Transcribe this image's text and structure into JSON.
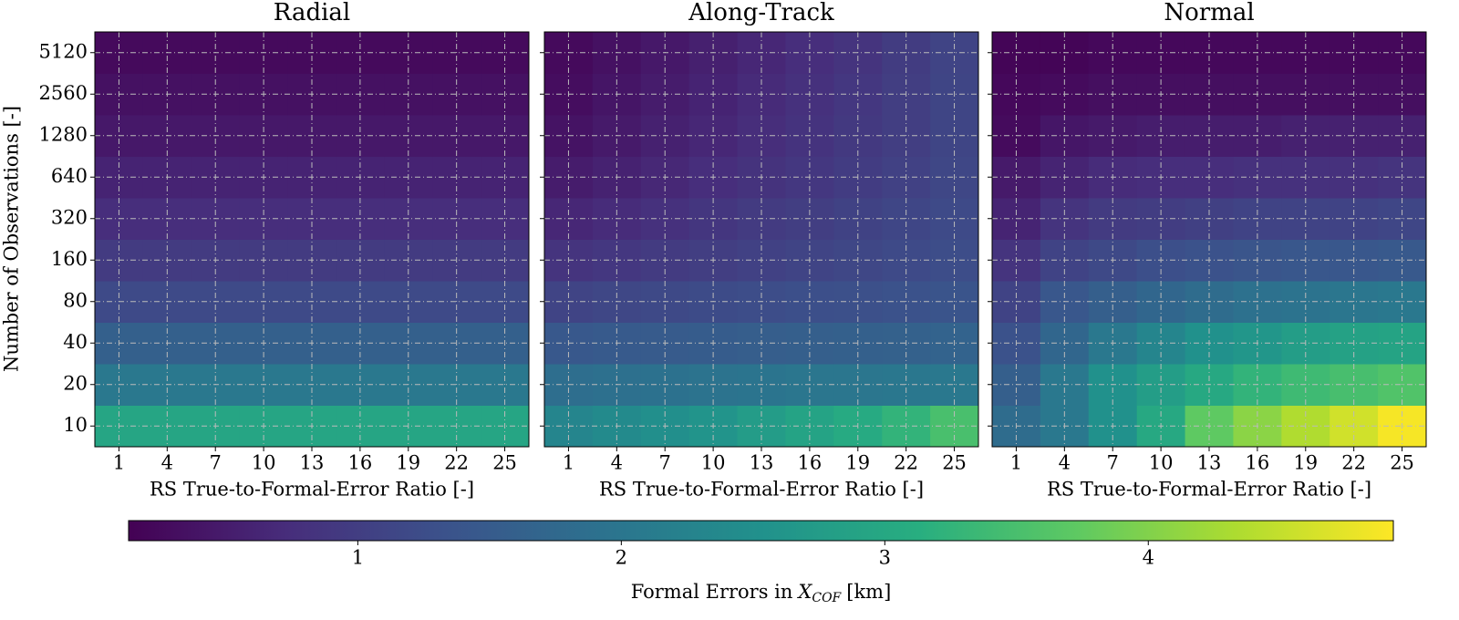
{
  "chart_data": {
    "type": "heatmap",
    "panels": [
      {
        "title": "Radial",
        "values": [
          [
            2.95,
            2.95,
            2.95,
            2.95,
            2.95,
            2.95,
            2.95,
            2.95,
            2.95
          ],
          [
            2.05,
            2.05,
            2.05,
            2.05,
            2.05,
            2.05,
            2.05,
            2.05,
            2.05
          ],
          [
            1.6,
            1.6,
            1.6,
            1.6,
            1.6,
            1.6,
            1.6,
            1.6,
            1.6
          ],
          [
            1.2,
            1.2,
            1.2,
            1.2,
            1.2,
            1.2,
            1.2,
            1.2,
            1.2
          ],
          [
            0.95,
            0.95,
            0.95,
            0.95,
            0.95,
            0.95,
            0.95,
            0.95,
            0.95
          ],
          [
            0.75,
            0.75,
            0.75,
            0.75,
            0.75,
            0.75,
            0.75,
            0.75,
            0.75
          ],
          [
            0.6,
            0.6,
            0.6,
            0.6,
            0.6,
            0.6,
            0.6,
            0.6,
            0.6
          ],
          [
            0.45,
            0.45,
            0.45,
            0.45,
            0.45,
            0.45,
            0.45,
            0.45,
            0.45
          ],
          [
            0.35,
            0.35,
            0.35,
            0.35,
            0.35,
            0.35,
            0.35,
            0.35,
            0.35
          ],
          [
            0.25,
            0.25,
            0.25,
            0.25,
            0.25,
            0.25,
            0.25,
            0.25,
            0.25
          ]
        ]
      },
      {
        "title": "Along-Track",
        "values": [
          [
            2.29,
            2.4,
            2.5,
            2.6,
            2.75,
            2.9,
            3.05,
            3.25,
            3.5
          ],
          [
            1.85,
            1.9,
            1.92,
            1.95,
            1.97,
            2.0,
            2.0,
            2.02,
            2.05
          ],
          [
            1.45,
            1.48,
            1.5,
            1.52,
            1.55,
            1.57,
            1.6,
            1.62,
            1.65
          ],
          [
            1.1,
            1.15,
            1.18,
            1.22,
            1.25,
            1.28,
            1.3,
            1.33,
            1.36
          ],
          [
            0.85,
            0.9,
            0.95,
            1.0,
            1.05,
            1.1,
            1.15,
            1.2,
            1.25
          ],
          [
            0.65,
            0.72,
            0.8,
            0.87,
            0.95,
            1.0,
            1.07,
            1.13,
            1.2
          ],
          [
            0.5,
            0.58,
            0.66,
            0.75,
            0.82,
            0.9,
            0.98,
            1.05,
            1.15
          ],
          [
            0.38,
            0.47,
            0.56,
            0.65,
            0.74,
            0.83,
            0.92,
            1.0,
            1.12
          ],
          [
            0.3,
            0.4,
            0.5,
            0.6,
            0.7,
            0.8,
            0.9,
            1.0,
            1.12
          ],
          [
            0.25,
            0.35,
            0.45,
            0.55,
            0.65,
            0.75,
            0.85,
            0.97,
            1.1
          ]
        ]
      },
      {
        "title": "Normal",
        "values": [
          [
            1.81,
            2.05,
            2.53,
            3.01,
            3.73,
            4.07,
            4.35,
            4.59,
            4.88
          ],
          [
            1.57,
            2.05,
            2.53,
            2.77,
            3.01,
            3.25,
            3.39,
            3.49,
            3.59
          ],
          [
            1.33,
            1.71,
            2.05,
            2.29,
            2.53,
            2.63,
            2.77,
            2.87,
            2.91
          ],
          [
            1.09,
            1.43,
            1.57,
            1.71,
            1.81,
            1.91,
            1.95,
            2.0,
            2.05
          ],
          [
            0.85,
            1.09,
            1.19,
            1.28,
            1.33,
            1.38,
            1.43,
            1.43,
            1.47
          ],
          [
            0.61,
            0.85,
            0.95,
            0.99,
            1.04,
            1.09,
            1.09,
            1.09,
            1.14
          ],
          [
            0.47,
            0.61,
            0.71,
            0.75,
            0.75,
            0.8,
            0.8,
            0.8,
            0.85
          ],
          [
            0.27,
            0.42,
            0.47,
            0.51,
            0.51,
            0.51,
            0.56,
            0.56,
            0.56
          ],
          [
            0.23,
            0.27,
            0.32,
            0.32,
            0.32,
            0.32,
            0.32,
            0.32,
            0.32
          ],
          [
            0.18,
            0.18,
            0.23,
            0.23,
            0.23,
            0.23,
            0.23,
            0.23,
            0.23
          ]
        ]
      }
    ],
    "x_categories": [
      1,
      4,
      7,
      10,
      13,
      16,
      19,
      22,
      25
    ],
    "y_categories": [
      10,
      20,
      40,
      80,
      160,
      320,
      640,
      1280,
      2560,
      5120
    ],
    "xlabel": "RS True-to-Formal-Error Ratio [-]",
    "ylabel": "Number of Observations [-]",
    "colormap": "viridis",
    "grid": true,
    "colorbar": {
      "label": "Formal Errors in",
      "label_var": "X",
      "label_sub": "COF",
      "label_unit": "[km]",
      "lim": [
        0.13,
        4.93
      ],
      "ticks": [
        1,
        2,
        3,
        4
      ]
    }
  }
}
